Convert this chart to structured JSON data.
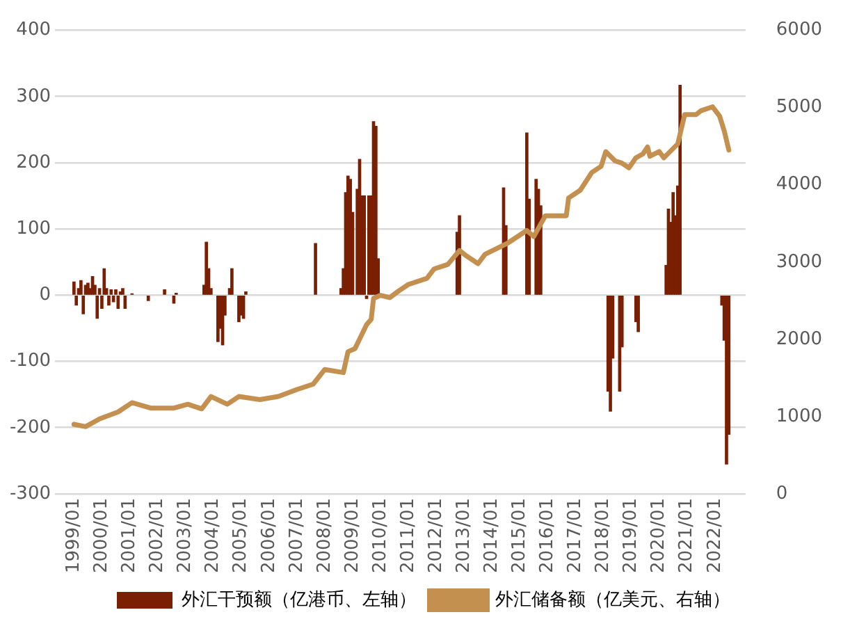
{
  "chart_data": {
    "type": "bar",
    "legend": "bottom",
    "grid": "y",
    "marker": "none",
    "x": [
      "1999-01",
      "1999-02",
      "1999-03",
      "1999-04",
      "1999-05",
      "1999-06",
      "1999-07",
      "1999-08",
      "1999-09",
      "1999-10",
      "1999-11",
      "1999-12",
      "2000-01",
      "2000-02",
      "2000-03",
      "2000-04",
      "2000-05",
      "2000-06",
      "2000-07",
      "2000-08",
      "2000-09",
      "2000-10",
      "2000-11",
      "2000-12",
      "2001-01",
      "2001-02",
      "2001-03",
      "2001-04",
      "2001-05",
      "2001-06",
      "2001-07",
      "2001-08",
      "2001-09",
      "2001-10",
      "2001-11",
      "2001-12",
      "2002-01",
      "2002-02",
      "2002-03",
      "2002-04",
      "2002-05",
      "2002-06",
      "2002-07",
      "2002-08",
      "2002-09",
      "2002-10",
      "2002-11",
      "2002-12",
      "2003-01",
      "2003-02",
      "2003-03",
      "2003-04",
      "2003-05",
      "2003-06",
      "2003-07",
      "2003-08",
      "2003-09",
      "2003-10",
      "2003-11",
      "2003-12",
      "2004-01",
      "2004-02",
      "2004-03",
      "2004-04",
      "2004-05",
      "2004-06",
      "2004-07",
      "2004-08",
      "2004-09",
      "2004-10",
      "2004-11",
      "2004-12",
      "2005-01",
      "2005-02",
      "2005-03",
      "2005-04",
      "2005-05",
      "2005-06",
      "2005-07",
      "2005-08",
      "2005-09",
      "2005-10",
      "2005-11",
      "2005-12",
      "2006-01",
      "2006-02",
      "2006-03",
      "2006-04",
      "2006-05",
      "2006-06",
      "2006-07",
      "2006-08",
      "2006-09",
      "2006-10",
      "2006-11",
      "2006-12",
      "2007-01",
      "2007-02",
      "2007-03",
      "2007-04",
      "2007-05",
      "2007-06",
      "2007-07",
      "2007-08",
      "2007-09",
      "2007-10",
      "2007-11",
      "2007-12",
      "2008-01",
      "2008-02",
      "2008-03",
      "2008-04",
      "2008-05",
      "2008-06",
      "2008-07",
      "2008-08",
      "2008-09",
      "2008-10",
      "2008-11",
      "2008-12",
      "2009-01",
      "2009-02",
      "2009-03",
      "2009-04",
      "2009-05",
      "2009-06",
      "2009-07",
      "2009-08",
      "2009-09",
      "2009-10",
      "2009-11",
      "2009-12",
      "2010-01",
      "2010-02",
      "2010-03",
      "2010-04",
      "2010-05",
      "2010-06",
      "2010-07",
      "2010-08",
      "2010-09",
      "2010-10",
      "2010-11",
      "2010-12",
      "2011-01",
      "2011-02",
      "2011-03",
      "2011-04",
      "2011-05",
      "2011-06",
      "2011-07",
      "2011-08",
      "2011-09",
      "2011-10",
      "2011-11",
      "2011-12",
      "2012-01",
      "2012-02",
      "2012-03",
      "2012-04",
      "2012-05",
      "2012-06",
      "2012-07",
      "2012-08",
      "2012-09",
      "2012-10",
      "2012-11",
      "2012-12",
      "2013-01",
      "2013-02",
      "2013-03",
      "2013-04",
      "2013-05",
      "2013-06",
      "2013-07",
      "2013-08",
      "2013-09",
      "2013-10",
      "2013-11",
      "2013-12",
      "2014-01",
      "2014-02",
      "2014-03",
      "2014-04",
      "2014-05",
      "2014-06",
      "2014-07",
      "2014-08",
      "2014-09",
      "2014-10",
      "2014-11",
      "2014-12",
      "2015-01",
      "2015-02",
      "2015-03",
      "2015-04",
      "2015-05",
      "2015-06",
      "2015-07",
      "2015-08",
      "2015-09",
      "2015-10",
      "2015-11",
      "2015-12",
      "2016-01",
      "2016-02",
      "2016-03",
      "2016-04",
      "2016-05",
      "2016-06",
      "2016-07",
      "2016-08",
      "2016-09",
      "2016-10",
      "2016-11",
      "2016-12",
      "2017-01",
      "2017-02",
      "2017-03",
      "2017-04",
      "2017-05",
      "2017-06",
      "2017-07",
      "2017-08",
      "2017-09",
      "2017-10",
      "2017-11",
      "2017-12",
      "2018-01",
      "2018-02",
      "2018-03",
      "2018-04",
      "2018-05",
      "2018-06",
      "2018-07",
      "2018-08",
      "2018-09",
      "2018-10",
      "2018-11",
      "2018-12",
      "2019-01",
      "2019-02",
      "2019-03",
      "2019-04",
      "2019-05",
      "2019-06",
      "2019-07",
      "2019-08",
      "2019-09",
      "2019-10",
      "2019-11",
      "2019-12",
      "2020-01",
      "2020-02",
      "2020-03",
      "2020-04",
      "2020-05",
      "2020-06",
      "2020-07",
      "2020-08",
      "2020-09",
      "2020-10",
      "2020-11",
      "2020-12",
      "2021-01",
      "2021-02",
      "2021-03",
      "2021-04",
      "2021-05",
      "2021-06",
      "2021-07",
      "2021-08",
      "2021-09",
      "2021-10",
      "2021-11",
      "2021-12",
      "2022-01",
      "2022-02",
      "2022-03",
      "2022-04",
      "2022-05",
      "2022-06",
      "2022-07"
    ],
    "xlim": [
      "1998-11",
      "2022-08"
    ],
    "xticks": [
      {
        "value": "1999-01",
        "label": "1999/01"
      },
      {
        "value": "2000-01",
        "label": "2000/01"
      },
      {
        "value": "2001-01",
        "label": "2001/01"
      },
      {
        "value": "2002-01",
        "label": "2002/01"
      },
      {
        "value": "2003-01",
        "label": "2003/01"
      },
      {
        "value": "2004-01",
        "label": "2004/01"
      },
      {
        "value": "2005-01",
        "label": "2005/01"
      },
      {
        "value": "2006-01",
        "label": "2006/01"
      },
      {
        "value": "2007-01",
        "label": "2007/01"
      },
      {
        "value": "2008-01",
        "label": "2008/01"
      },
      {
        "value": "2009-01",
        "label": "2009/01"
      },
      {
        "value": "2010-01",
        "label": "2010/01"
      },
      {
        "value": "2011-01",
        "label": "2011/01"
      },
      {
        "value": "2012-01",
        "label": "2012/01"
      },
      {
        "value": "2013-01",
        "label": "2013/01"
      },
      {
        "value": "2014-01",
        "label": "2014/01"
      },
      {
        "value": "2015-01",
        "label": "2015/01"
      },
      {
        "value": "2016-01",
        "label": "2016/01"
      },
      {
        "value": "2017-01",
        "label": "2017/01"
      },
      {
        "value": "2018-01",
        "label": "2018/01"
      },
      {
        "value": "2019-01",
        "label": "2019/01"
      },
      {
        "value": "2020-01",
        "label": "2020/01"
      },
      {
        "value": "2021-01",
        "label": "2021/01"
      },
      {
        "value": "2022-01",
        "label": "2022/01"
      }
    ],
    "ylim": [
      -300,
      400
    ],
    "yticks": [
      -300,
      -200,
      -100,
      0,
      100,
      200,
      300,
      400
    ],
    "y2lim": [
      0,
      6000
    ],
    "y2ticks": [
      0,
      1000,
      2000,
      3000,
      4000,
      5000,
      6000
    ],
    "series": [
      {
        "name": "外汇干预额（亿港币、左轴）",
        "color": "#7a1f02",
        "values": [
          20,
          -15,
          10,
          22,
          -28,
          15,
          18,
          10,
          28,
          15,
          -35,
          10,
          -20,
          40,
          10,
          -15,
          8,
          -10,
          8,
          -20,
          5,
          10,
          -20,
          null,
          null,
          2,
          null,
          null,
          null,
          null,
          null,
          null,
          -8,
          null,
          null,
          null,
          null,
          null,
          null,
          8,
          null,
          null,
          null,
          -12,
          3,
          null,
          null,
          null,
          null,
          null,
          null,
          null,
          null,
          null,
          null,
          null,
          15,
          80,
          40,
          10,
          null,
          null,
          -70,
          -50,
          -75,
          -30,
          null,
          10,
          40,
          null,
          null,
          -40,
          -30,
          -35,
          5,
          null,
          null,
          null,
          null,
          null,
          null,
          null,
          null,
          null,
          null,
          null,
          null,
          null,
          null,
          null,
          null,
          null,
          null,
          null,
          null,
          null,
          null,
          null,
          null,
          null,
          null,
          null,
          null,
          null,
          78,
          null,
          null,
          null,
          null,
          null,
          null,
          null,
          null,
          null,
          null,
          10,
          40,
          155,
          180,
          175,
          125,
          null,
          160,
          205,
          150,
          150,
          -5,
          150,
          150,
          262,
          255,
          55,
          null,
          null,
          null,
          null,
          null,
          null,
          null,
          null,
          null,
          null,
          null,
          null,
          null,
          null,
          null,
          null,
          null,
          null,
          null,
          null,
          null,
          null,
          null,
          null,
          null,
          null,
          null,
          null,
          null,
          null,
          null,
          null,
          null,
          95,
          120,
          null,
          null,
          null,
          null,
          null,
          null,
          null,
          null,
          null,
          null,
          null,
          null,
          null,
          null,
          null,
          null,
          null,
          null,
          162,
          105,
          null,
          null,
          null,
          null,
          null,
          null,
          null,
          null,
          245,
          145,
          null,
          null,
          175,
          160,
          135,
          null,
          null,
          null,
          null,
          null,
          null,
          null,
          null,
          null,
          null,
          null,
          null,
          null,
          null,
          null,
          null,
          null,
          null,
          null,
          null,
          null,
          null,
          null,
          null,
          null,
          null,
          null,
          null,
          -145,
          -175,
          -95,
          null,
          null,
          -145,
          -78,
          null,
          null,
          null,
          null,
          null,
          -40,
          -55,
          null,
          null,
          null,
          null,
          null,
          null,
          null,
          null,
          null,
          null,
          null,
          45,
          130,
          110,
          155,
          120,
          165,
          317,
          null,
          null,
          null,
          null,
          null,
          null,
          null,
          null,
          null,
          null,
          null,
          null,
          null,
          null,
          null,
          null,
          null,
          -15,
          -68,
          -255,
          -210
        ]
      },
      {
        "name": "外汇储备额（亿美元、右轴）",
        "type": "line",
        "axis": "y2",
        "color": "#c49050",
        "x": [
          "1999-01",
          "1999-06",
          "1999-12",
          "2000-08",
          "2001-02",
          "2001-10",
          "2002-08",
          "2003-02",
          "2003-08",
          "2003-12",
          "2004-07",
          "2004-12",
          "2005-09",
          "2006-05",
          "2007-01",
          "2007-08",
          "2008-01",
          "2008-09",
          "2008-11",
          "2009-02",
          "2009-07",
          "2009-09",
          "2009-10",
          "2010-01",
          "2010-05",
          "2010-09",
          "2011-01",
          "2011-09",
          "2011-12",
          "2012-06",
          "2012-11",
          "2013-02",
          "2013-07",
          "2013-10",
          "2014-08",
          "2015-04",
          "2015-07",
          "2015-12",
          "2016-06",
          "2016-09",
          "2016-10",
          "2017-03",
          "2017-08",
          "2017-12",
          "2018-02",
          "2018-06",
          "2018-09",
          "2018-12",
          "2019-03",
          "2019-06",
          "2019-08",
          "2019-09",
          "2020-01",
          "2020-03",
          "2020-09",
          "2020-12",
          "2021-05",
          "2021-07",
          "2021-12",
          "2022-03",
          "2022-05",
          "2022-07"
        ],
        "values": [
          900,
          870,
          970,
          1060,
          1180,
          1110,
          1110,
          1160,
          1100,
          1260,
          1160,
          1260,
          1220,
          1260,
          1350,
          1420,
          1610,
          1570,
          1840,
          1880,
          2190,
          2260,
          2530,
          2570,
          2540,
          2630,
          2710,
          2790,
          2910,
          2970,
          3150,
          3080,
          2980,
          3100,
          3250,
          3410,
          3330,
          3600,
          3600,
          3600,
          3830,
          3930,
          4160,
          4240,
          4430,
          4310,
          4280,
          4220,
          4350,
          4400,
          4490,
          4370,
          4430,
          4350,
          4530,
          4910,
          4910,
          4960,
          5010,
          4890,
          4700,
          4450
        ]
      }
    ]
  }
}
